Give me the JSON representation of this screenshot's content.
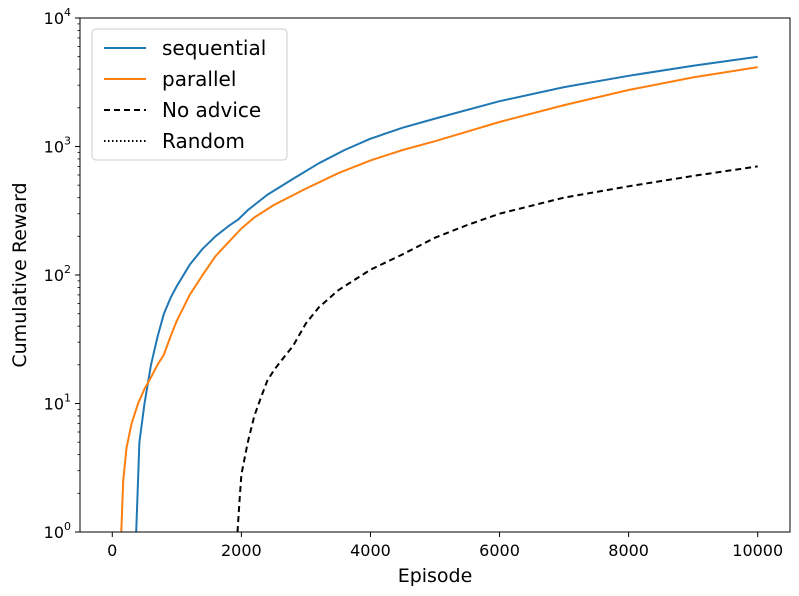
{
  "chart_data": {
    "type": "line",
    "title": "",
    "xlabel": "Episode",
    "ylabel": "Cumulative Reward",
    "xlim": [
      -500,
      10500
    ],
    "ylim": [
      1,
      10000
    ],
    "yscale": "log",
    "grid": false,
    "legend_position": "top-left",
    "x_ticks": [
      {
        "value": 0,
        "label": "0"
      },
      {
        "value": 2000,
        "label": "2000"
      },
      {
        "value": 4000,
        "label": "4000"
      },
      {
        "value": 6000,
        "label": "6000"
      },
      {
        "value": 8000,
        "label": "8000"
      },
      {
        "value": 10000,
        "label": "10000"
      }
    ],
    "y_ticks": [
      {
        "value": 1,
        "base": "10",
        "exp": "0"
      },
      {
        "value": 10,
        "base": "10",
        "exp": "1"
      },
      {
        "value": 100,
        "base": "10",
        "exp": "2"
      },
      {
        "value": 1000,
        "base": "10",
        "exp": "3"
      },
      {
        "value": 10000,
        "base": "10",
        "exp": "4"
      }
    ],
    "series": [
      {
        "name": "sequential",
        "color": "#1f77b4",
        "dash": "solid",
        "x": [
          370,
          420,
          500,
          600,
          700,
          800,
          900,
          1000,
          1200,
          1400,
          1600,
          1800,
          1950,
          2100,
          2400,
          2800,
          3200,
          3600,
          4000,
          4500,
          5000,
          6000,
          7000,
          8000,
          9000,
          10000
        ],
        "y": [
          1.0,
          5,
          10,
          20,
          33,
          50,
          66,
          82,
          120,
          160,
          200,
          240,
          270,
          320,
          420,
          560,
          740,
          940,
          1150,
          1400,
          1650,
          2250,
          2900,
          3550,
          4250,
          5000
        ]
      },
      {
        "name": "parallel",
        "color": "#ff7f0e",
        "dash": "solid",
        "x": [
          140,
          170,
          220,
          300,
          400,
          500,
          600,
          700,
          800,
          900,
          1000,
          1200,
          1400,
          1600,
          1800,
          2000,
          2200,
          2500,
          3000,
          3500,
          4000,
          4500,
          5000,
          6000,
          7000,
          8000,
          9000,
          10000
        ],
        "y": [
          1.0,
          2.5,
          4.5,
          7,
          10,
          13,
          16,
          20,
          24,
          33,
          44,
          70,
          100,
          140,
          180,
          230,
          280,
          350,
          470,
          620,
          780,
          940,
          1100,
          1550,
          2100,
          2750,
          3450,
          4150
        ]
      },
      {
        "name": "No advice",
        "color": "#000000",
        "dash": "dashed",
        "x": [
          1940,
          1970,
          2000,
          2100,
          2200,
          2300,
          2400,
          2500,
          2600,
          2800,
          3000,
          3200,
          3500,
          4000,
          4500,
          5000,
          5500,
          6000,
          7000,
          8000,
          9000,
          10000
        ],
        "y": [
          1.0,
          1.7,
          2.8,
          5,
          8,
          11,
          15,
          18,
          21,
          28,
          42,
          56,
          76,
          110,
          145,
          195,
          245,
          300,
          400,
          490,
          590,
          700
        ]
      },
      {
        "name": "Random",
        "color": "#000000",
        "dash": "dotted",
        "x": [],
        "y": []
      }
    ]
  }
}
